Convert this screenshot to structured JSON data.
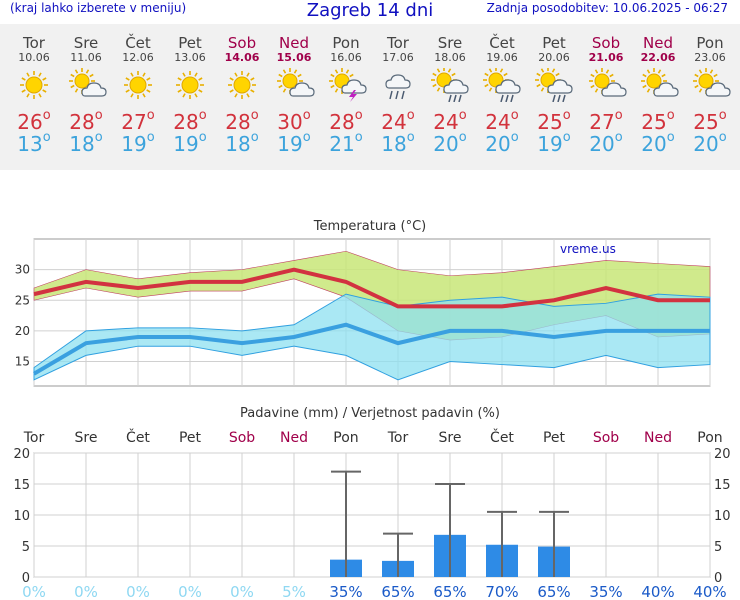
{
  "header": {
    "menu_hint": "(kraj lahko izberete v meniju)",
    "title": "Zagreb 14 dni",
    "updated": "Zadnja posodobitev: 10.06.2025 - 06:27"
  },
  "colors": {
    "max_temp": "#d2323c",
    "min_temp": "#3ca3dc",
    "weekend": "#a0004a",
    "rain_bar": "#2e8be6",
    "max_band": "#c8e678",
    "min_band": "#8ee0f0",
    "overlap_band": "#78d278"
  },
  "days": [
    {
      "name": "Tor",
      "date": "10.06",
      "weekend": false,
      "icon": "sun-icon",
      "max": "26",
      "min": "13"
    },
    {
      "name": "Sre",
      "date": "11.06",
      "weekend": false,
      "icon": "partly-cloudy-icon",
      "max": "28",
      "min": "18"
    },
    {
      "name": "Čet",
      "date": "12.06",
      "weekend": false,
      "icon": "sun-icon",
      "max": "27",
      "min": "19"
    },
    {
      "name": "Pet",
      "date": "13.06",
      "weekend": false,
      "icon": "sun-icon",
      "max": "28",
      "min": "19"
    },
    {
      "name": "Sob",
      "date": "14.06",
      "weekend": true,
      "icon": "sun-icon",
      "max": "28",
      "min": "18"
    },
    {
      "name": "Ned",
      "date": "15.06",
      "weekend": true,
      "icon": "partly-cloudy-icon",
      "max": "30",
      "min": "19"
    },
    {
      "name": "Pon",
      "date": "16.06",
      "weekend": false,
      "icon": "thunderstorm-icon",
      "max": "28",
      "min": "21"
    },
    {
      "name": "Tor",
      "date": "17.06",
      "weekend": false,
      "icon": "cloud-rain-icon",
      "max": "24",
      "min": "18"
    },
    {
      "name": "Sre",
      "date": "18.06",
      "weekend": false,
      "icon": "sun-cloud-rain-icon",
      "max": "24",
      "min": "20"
    },
    {
      "name": "Čet",
      "date": "19.06",
      "weekend": false,
      "icon": "sun-cloud-rain-icon",
      "max": "24",
      "min": "20"
    },
    {
      "name": "Pet",
      "date": "20.06",
      "weekend": false,
      "icon": "sun-cloud-rain-icon",
      "max": "25",
      "min": "19"
    },
    {
      "name": "Sob",
      "date": "21.06",
      "weekend": true,
      "icon": "partly-cloudy-icon",
      "max": "27",
      "min": "20"
    },
    {
      "name": "Ned",
      "date": "22.06",
      "weekend": true,
      "icon": "partly-cloudy-icon",
      "max": "25",
      "min": "20"
    },
    {
      "name": "Pon",
      "date": "23.06",
      "weekend": false,
      "icon": "partly-cloudy-icon",
      "max": "25",
      "min": "20"
    }
  ],
  "chart_data": [
    {
      "type": "line",
      "title": "Temperatura (°C)",
      "watermark": "vreme.us",
      "x": [
        "10.06",
        "11.06",
        "12.06",
        "13.06",
        "14.06",
        "15.06",
        "16.06",
        "17.06",
        "18.06",
        "19.06",
        "20.06",
        "21.06",
        "22.06",
        "23.06"
      ],
      "ylim": [
        11,
        35
      ],
      "yticks": [
        15,
        20,
        25,
        30
      ],
      "grid": true,
      "series": [
        {
          "role": "max",
          "values": [
            26,
            28,
            27,
            28,
            28,
            30,
            28,
            24,
            24,
            24,
            25,
            27,
            25,
            25
          ]
        },
        {
          "role": "max_upper",
          "values": [
            27,
            30,
            28.5,
            29.5,
            30,
            31.5,
            33,
            30,
            29,
            29.5,
            30.5,
            31.5,
            31,
            30.5
          ]
        },
        {
          "role": "max_lower",
          "values": [
            25,
            27,
            25.5,
            26.5,
            26.5,
            28.5,
            25.5,
            20,
            18.5,
            19,
            21,
            22.5,
            19,
            19.5
          ]
        },
        {
          "role": "min",
          "values": [
            13,
            18,
            19,
            19,
            18,
            19,
            21,
            18,
            20,
            20,
            19,
            20,
            20,
            20
          ]
        },
        {
          "role": "min_upper",
          "values": [
            14,
            20,
            20.5,
            20.5,
            20,
            21,
            26,
            24,
            25,
            25.5,
            24,
            24.5,
            26,
            25.5
          ]
        },
        {
          "role": "min_lower",
          "values": [
            12,
            16,
            17.5,
            17.5,
            16,
            17.5,
            16,
            12,
            15,
            14.5,
            14,
            16,
            14,
            14.5
          ]
        }
      ]
    },
    {
      "type": "bar",
      "title": "Padavine (mm) / Verjetnost padavin (%)",
      "categories": [
        "Tor",
        "Sre",
        "Čet",
        "Pet",
        "Sob",
        "Ned",
        "Pon",
        "Tor",
        "Sre",
        "Čet",
        "Pet",
        "Sob",
        "Ned",
        "Pon"
      ],
      "weekend": [
        false,
        false,
        false,
        false,
        true,
        true,
        false,
        false,
        false,
        false,
        false,
        true,
        true,
        false
      ],
      "values": [
        0,
        0,
        0,
        0,
        0,
        0,
        2.8,
        2.6,
        6.8,
        5.2,
        4.9,
        0,
        0,
        0
      ],
      "error_max": [
        0,
        0,
        0,
        0,
        0,
        0,
        17,
        7,
        15,
        10.5,
        10.5,
        0,
        0,
        0
      ],
      "probability": [
        "0%",
        "0%",
        "0%",
        "0%",
        "0%",
        "5%",
        "35%",
        "65%",
        "65%",
        "70%",
        "65%",
        "35%",
        "40%",
        "40%"
      ],
      "ylim": [
        0,
        20
      ],
      "yticks": [
        0,
        5,
        10,
        15,
        20
      ],
      "grid": true
    }
  ]
}
